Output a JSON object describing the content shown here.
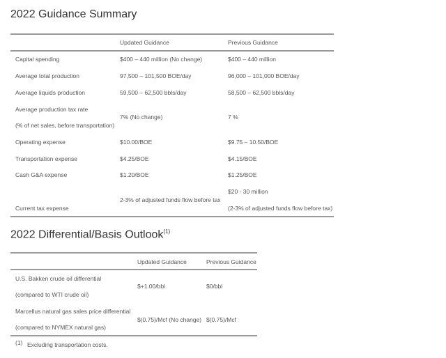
{
  "guidance": {
    "title": "2022 Guidance Summary",
    "headers": [
      "",
      "Updated Guidance",
      "Previous Guidance"
    ],
    "rows": [
      {
        "label": "Capital spending",
        "updated": "$400 – 440 million (No change)",
        "previous": "$400 – 440 million"
      },
      {
        "label": "Average total production",
        "updated": "97,500 – 101,500 BOE/day",
        "previous": "96,000 – 101,000 BOE/day"
      },
      {
        "label": "Average liquids production",
        "updated": "59,500 – 62,500 bbls/day",
        "previous": "58,500 – 62,500 bbls/day"
      },
      {
        "label": "Average production tax rate",
        "sublabel": "(% of net sales, before transportation)",
        "updated": "7% (No change)",
        "previous": "7 %"
      },
      {
        "label": "Operating expense",
        "updated": "$10.00/BOE",
        "previous": "$9.75 – 10.50/BOE"
      },
      {
        "label": "Transportation expense",
        "updated": "$4.25/BOE",
        "previous": "$4.15/BOE"
      },
      {
        "label": "Cash G&A expense",
        "updated": "$1.20/BOE",
        "previous": "$1.25/BOE"
      },
      {
        "label": "Current tax expense",
        "updated": "2-3% of adjusted funds flow before tax",
        "previous": "$20 - 30 million",
        "previous_sub": "(2-3% of adjusted funds flow before tax)"
      }
    ]
  },
  "differential": {
    "title": "2022 Differential/Basis Outlook",
    "title_note": "(1)",
    "headers": [
      "",
      "Updated Guidance",
      "Previous Guidance"
    ],
    "rows": [
      {
        "label": "U.S. Bakken crude oil differential",
        "sublabel": "(compared to WTI crude oil)",
        "updated": "$+1.00/bbl",
        "previous": "$0/bbl"
      },
      {
        "label": "Marcellus natural gas sales price differential",
        "sublabel": "(compared to NYMEX natural gas)",
        "updated": "$(0.75)/Mcf (No change)",
        "previous": "$(0.75)/Mcf"
      }
    ],
    "footnote_marker": "(1)",
    "footnote": "Excluding transportation costs."
  }
}
